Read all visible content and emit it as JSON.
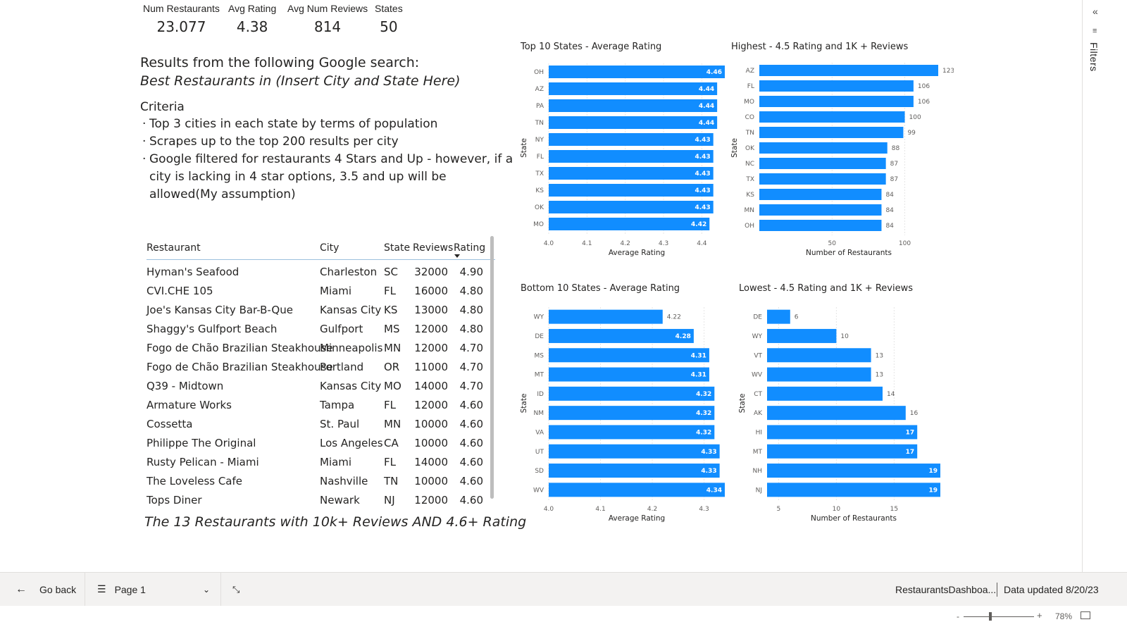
{
  "kpis": [
    {
      "label": "Num Restaurants",
      "value": "23.077"
    },
    {
      "label": "Avg Rating",
      "value": "4.38"
    },
    {
      "label": "Avg Num Reviews",
      "value": "814"
    },
    {
      "label": "States",
      "value": "50"
    }
  ],
  "description": {
    "line1": "Results from the following Google search:",
    "line2": "Best Restaurants in (Insert City and State Here)",
    "criteria_title": "Criteria",
    "bullets": [
      "Top 3 cities in each state by terms of population",
      "Scrapes up to the top 200 results per city",
      "Google filtered for restaurants 4 Stars and Up - however, if a city is lacking in 4 star options, 3.5 and up will be allowed(My assumption)"
    ]
  },
  "table": {
    "columns": [
      "Restaurant",
      "City",
      "State",
      "Reviews",
      "Rating"
    ],
    "rows": [
      [
        "Hyman's Seafood",
        "Charleston",
        "SC",
        "32000",
        "4.90"
      ],
      [
        "CVI.CHE 105",
        "Miami",
        "FL",
        "16000",
        "4.80"
      ],
      [
        "Joe's Kansas City Bar-B-Que",
        "Kansas City",
        "KS",
        "13000",
        "4.80"
      ],
      [
        "Shaggy's Gulfport Beach",
        "Gulfport",
        "MS",
        "12000",
        "4.80"
      ],
      [
        "Fogo de Chão Brazilian Steakhouse",
        "Minneapolis",
        "MN",
        "12000",
        "4.70"
      ],
      [
        "Fogo de Chão Brazilian Steakhouse",
        "Portland",
        "OR",
        "11000",
        "4.70"
      ],
      [
        "Q39 - Midtown",
        "Kansas City",
        "MO",
        "14000",
        "4.70"
      ],
      [
        "Armature Works",
        "Tampa",
        "FL",
        "12000",
        "4.60"
      ],
      [
        "Cossetta",
        "St. Paul",
        "MN",
        "10000",
        "4.60"
      ],
      [
        "Philippe The Original",
        "Los Angeles",
        "CA",
        "10000",
        "4.60"
      ],
      [
        "Rusty Pelican - Miami",
        "Miami",
        "FL",
        "14000",
        "4.60"
      ],
      [
        "The Loveless Cafe",
        "Nashville",
        "TN",
        "10000",
        "4.60"
      ],
      [
        "Tops Diner",
        "Newark",
        "NJ",
        "12000",
        "4.60"
      ]
    ],
    "caption": "The 13 Restaurants with 10k+ Reviews AND 4.6+ Rating"
  },
  "chart_data": [
    {
      "type": "bar",
      "title": "Top 10 States - Average Rating",
      "xlabel": "Average Rating",
      "ylabel": "State",
      "categories": [
        "OH",
        "AZ",
        "PA",
        "TN",
        "NY",
        "FL",
        "TX",
        "KS",
        "OK",
        "MO"
      ],
      "values": [
        4.46,
        4.44,
        4.44,
        4.44,
        4.43,
        4.43,
        4.43,
        4.43,
        4.43,
        4.42
      ],
      "xlim": [
        4.0,
        4.46
      ],
      "ticks": [
        "4.0",
        "4.1",
        "4.2",
        "4.3",
        "4.4"
      ],
      "label_inside": true,
      "color": "#118dff"
    },
    {
      "type": "bar",
      "title": "Highest - 4.5 Rating and 1K + Reviews",
      "xlabel": "Number of Restaurants",
      "ylabel": "State",
      "categories": [
        "AZ",
        "FL",
        "MO",
        "CO",
        "TN",
        "OK",
        "NC",
        "TX",
        "KS",
        "MN",
        "OH"
      ],
      "values": [
        123,
        106,
        106,
        100,
        99,
        88,
        87,
        87,
        84,
        84,
        84
      ],
      "xlim": [
        0,
        123
      ],
      "ticks": [
        "50",
        "100"
      ],
      "label_inside": false,
      "color": "#118dff"
    },
    {
      "type": "bar",
      "title": "Bottom 10 States - Average Rating",
      "xlabel": "Average Rating",
      "ylabel": "State",
      "categories": [
        "WY",
        "DE",
        "MS",
        "MT",
        "ID",
        "NM",
        "VA",
        "UT",
        "SD",
        "WV"
      ],
      "values": [
        4.22,
        4.28,
        4.31,
        4.31,
        4.32,
        4.32,
        4.32,
        4.33,
        4.33,
        4.34
      ],
      "xlim": [
        4.0,
        4.34
      ],
      "ticks": [
        "4.0",
        "4.1",
        "4.2",
        "4.3"
      ],
      "label_inside": "auto",
      "color": "#118dff"
    },
    {
      "type": "bar",
      "title": "Lowest - 4.5 Rating and 1K + Reviews",
      "xlabel": "Number of Restaurants",
      "ylabel": "State",
      "categories": [
        "DE",
        "WY",
        "VT",
        "WV",
        "CT",
        "AK",
        "HI",
        "MT",
        "NH",
        "NJ"
      ],
      "values": [
        6,
        10,
        13,
        13,
        14,
        16,
        17,
        17,
        19,
        19
      ],
      "xlim": [
        4,
        19
      ],
      "ticks": [
        "5",
        "10",
        "15"
      ],
      "label_inside": "auto",
      "color": "#118dff"
    }
  ],
  "filters": {
    "label": "Filters",
    "collapse_icon": "double-chevron-left-icon",
    "filter_icon": "filter-icon"
  },
  "bottombar": {
    "back_label": "Go back",
    "page_label": "Page 1",
    "report_name": "RestaurantsDashboa...",
    "data_updated": "Data updated 8/20/23"
  },
  "statusbar": {
    "zoom": "78%",
    "zoom_minus": "-",
    "zoom_plus": "+"
  }
}
